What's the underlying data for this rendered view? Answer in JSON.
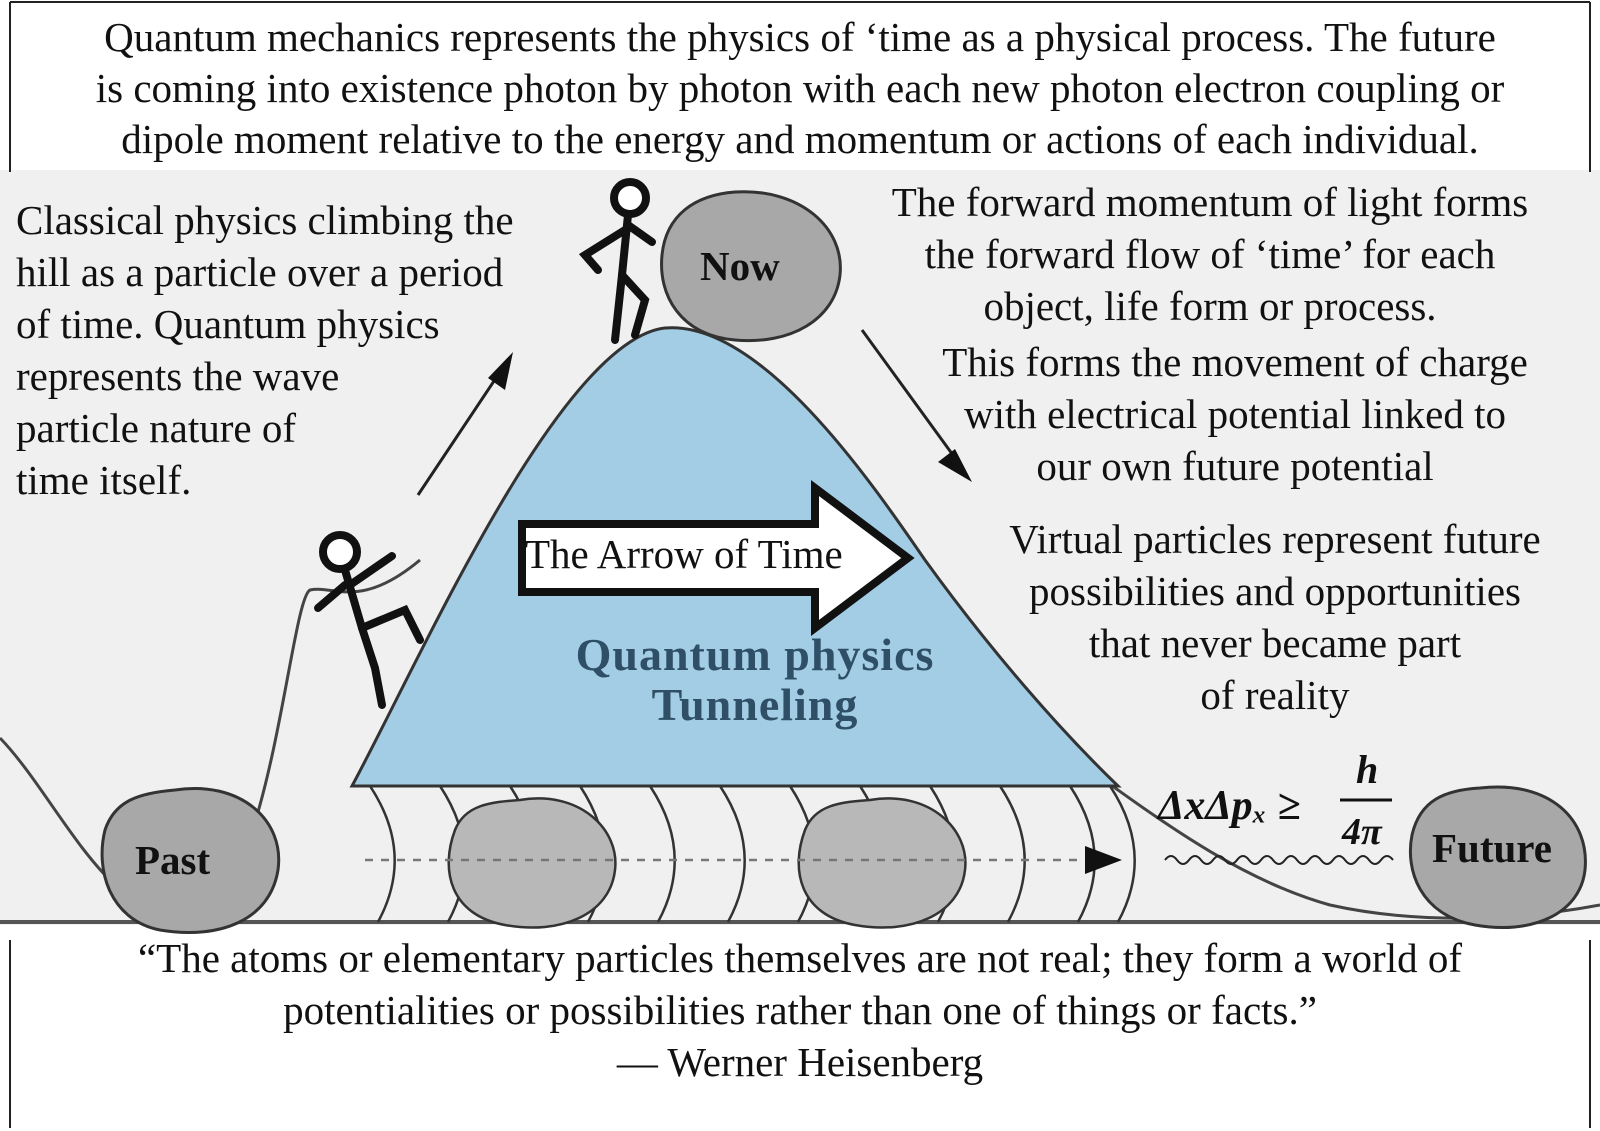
{
  "intro_text": [
    "Quantum mechanics represents the physics of ‘time as a physical process. The future",
    "is coming into existence photon by photon with each new photon electron coupling or",
    "dipole moment relative to the energy and momentum or actions of each individual."
  ],
  "left_note": [
    "Classical physics climbing the",
    "hill as a particle over a period",
    "of time. Quantum physics",
    "represents the wave",
    "particle nature of",
    "time itself."
  ],
  "right_note_momentum": [
    "The forward momentum of light forms",
    "the forward flow of ‘time’ for each",
    "object, life form or process."
  ],
  "right_note_charge": [
    "This forms the movement of charge",
    "with electrical potential linked to",
    "our own future potential"
  ],
  "right_note_virtual": [
    "Virtual particles represent future",
    "possibilities and opportunities",
    "that never became part",
    "of reality"
  ],
  "arrow_label": "The Arrow of Time",
  "tunneling_label": [
    "Quantum physics",
    "Tunneling"
  ],
  "balls": {
    "now": "Now",
    "past": "Past",
    "future": "Future"
  },
  "formula": {
    "lhs": "ΔxΔpₓ ≥",
    "numerator": "h",
    "denominator": "4π"
  },
  "quote": [
    "“The atoms or elementary particles themselves are not real; they form a world of",
    "potentialities or possibilities rather than one of things or facts.”",
    "— Werner Heisenberg"
  ],
  "colors": {
    "hill_fill": "#a3cde4",
    "ball_fill": "#a8a8a8",
    "tunnel_label": "#2e4f66",
    "background": "#f0f0f0"
  },
  "icons": [
    "stick-figure-climbing",
    "stick-figure-at-top",
    "hollow-arrow-right",
    "wavy-line"
  ]
}
